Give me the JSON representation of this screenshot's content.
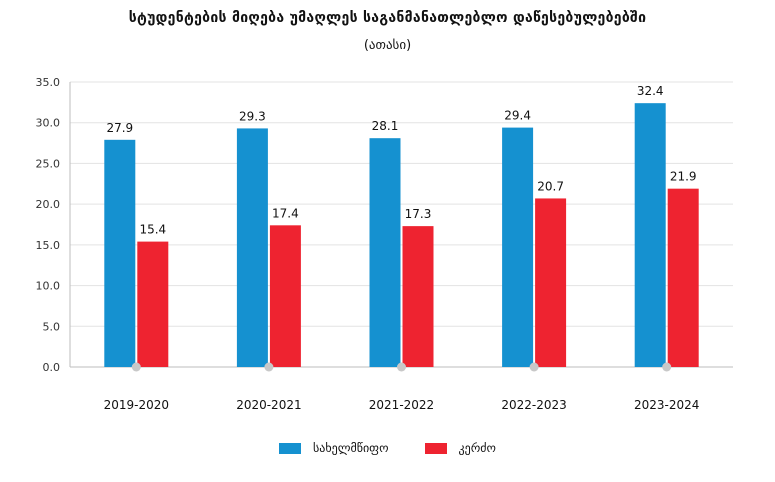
{
  "chart_data": {
    "type": "bar",
    "title": "სტუდენტების მიღება უმაღლეს საგანმანათლებლო დაწესებულებებში",
    "subtitle": "(ათასი)",
    "categories": [
      "2019-2020",
      "2020-2021",
      "2021-2022",
      "2022-2023",
      "2023-2024"
    ],
    "series": [
      {
        "name": "სახელმწიფო",
        "values": [
          27.9,
          29.3,
          28.1,
          29.4,
          32.4
        ],
        "color": "#1591d0"
      },
      {
        "name": "კერძო",
        "values": [
          15.4,
          17.4,
          17.3,
          20.7,
          21.9
        ],
        "color": "#ee2330"
      }
    ],
    "ylim": [
      0,
      35
    ],
    "yticks": [
      "0.0",
      "5.0",
      "10.0",
      "15.0",
      "20.0",
      "25.0",
      "30.0",
      "35.0"
    ],
    "grid": true,
    "legend": "bottom"
  }
}
